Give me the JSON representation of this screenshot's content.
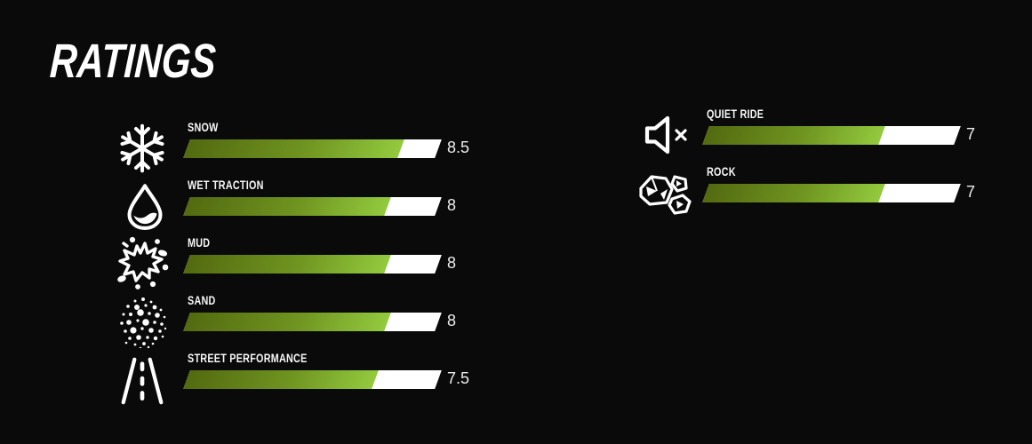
{
  "title": "RATINGS",
  "scale_max": 10,
  "colors": {
    "background": "#0a0a0a",
    "bar_gradient_start": "#536a10",
    "bar_gradient_end": "#93ca3e",
    "bar_remainder": "#ffffff",
    "text": "#ffffff"
  },
  "columns": {
    "left": [
      {
        "label": "SNOW",
        "value": 8.5,
        "display": "8.5",
        "icon": "snowflake-icon"
      },
      {
        "label": "WET TRACTION",
        "value": 8,
        "display": "8",
        "icon": "water-drop-icon"
      },
      {
        "label": "MUD",
        "value": 8,
        "display": "8",
        "icon": "mud-splat-icon"
      },
      {
        "label": "SAND",
        "value": 8,
        "display": "8",
        "icon": "sand-icon"
      },
      {
        "label": "STREET PERFORMANCE",
        "value": 7.5,
        "display": "7.5",
        "icon": "road-icon"
      }
    ],
    "right": [
      {
        "label": "QUIET RIDE",
        "value": 7,
        "display": "7",
        "icon": "muted-speaker-icon"
      },
      {
        "label": "ROCK",
        "value": 7,
        "display": "7",
        "icon": "rocks-icon"
      }
    ]
  },
  "chart_data": {
    "type": "bar",
    "orientation": "horizontal",
    "title": "RATINGS",
    "categories": [
      "SNOW",
      "WET TRACTION",
      "MUD",
      "SAND",
      "STREET PERFORMANCE",
      "QUIET RIDE",
      "ROCK"
    ],
    "values": [
      8.5,
      8,
      8,
      8,
      7.5,
      7,
      7
    ],
    "xlim": [
      0,
      10
    ],
    "legend_position": "none",
    "grid": false
  }
}
